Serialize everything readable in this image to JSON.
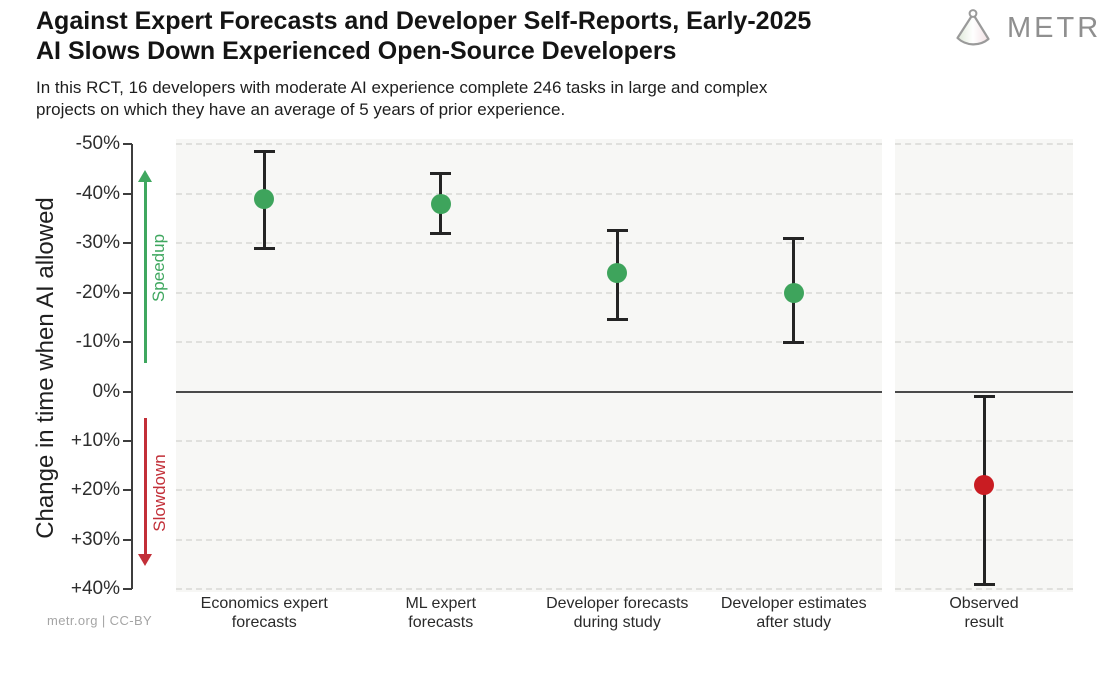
{
  "header": {
    "title_lines": [
      "Against Expert Forecasts and Developer Self-Reports, Early-2025",
      "AI Slows Down Experienced Open-Source Developers"
    ],
    "subtitle_lines": [
      "In this RCT, 16 developers with moderate AI experience complete 246 tasks in large and complex",
      "projects on which they have an average of 5 years of prior experience."
    ],
    "logo_text": "METR"
  },
  "footer": {
    "credit": "metr.org | CC-BY"
  },
  "colors": {
    "speedup_green": "#3fa75f",
    "green_dot": "#3ea45c",
    "slowdown_red": "#c22f38",
    "red_dot": "#c91c22",
    "panel_bg": "#f7f7f5",
    "error_bar": "#242424"
  },
  "chart_data": {
    "type": "scatter",
    "title": "Against Expert Forecasts and Developer Self-Reports, Early-2025 AI Slows Down Experienced Open-Source Developers",
    "ylabel": "Change in time when AI allowed",
    "units": "percent change in completion time when AI is allowed (negative = speedup, positive = slowdown)",
    "ylim_top_to_bottom": [
      -50,
      40
    ],
    "grid": "horizontal dashed, solid line at 0%",
    "legend_position": "none",
    "yticks": [
      {
        "label": "-50%",
        "value": -50
      },
      {
        "label": "-40%",
        "value": -40
      },
      {
        "label": "-30%",
        "value": -30
      },
      {
        "label": "-20%",
        "value": -20
      },
      {
        "label": "-10%",
        "value": -10
      },
      {
        "label": "0%",
        "value": 0
      },
      {
        "label": "+10%",
        "value": 10
      },
      {
        "label": "+20%",
        "value": 20
      },
      {
        "label": "+30%",
        "value": 30
      },
      {
        "label": "+40%",
        "value": 40
      }
    ],
    "annotations": {
      "speedup": {
        "label": "Speedup",
        "color": "#3fa75f",
        "direction": "up",
        "arrow_from_pct": -6,
        "arrow_to_pct": -44
      },
      "slowdown": {
        "label": "Slowdown",
        "color": "#c22f38",
        "direction": "down",
        "arrow_from_pct": 5,
        "arrow_to_pct": 35
      }
    },
    "points": [
      {
        "category_lines": [
          "Economics expert",
          "forecasts"
        ],
        "value": -39,
        "ci": [
          -48.5,
          -29
        ],
        "color": "#3ea45c",
        "panel": 0
      },
      {
        "category_lines": [
          "ML expert",
          "forecasts"
        ],
        "value": -38,
        "ci": [
          -44,
          -32
        ],
        "color": "#3ea45c",
        "panel": 0
      },
      {
        "category_lines": [
          "Developer forecasts",
          "during study"
        ],
        "value": -24,
        "ci": [
          -32.5,
          -14.5
        ],
        "color": "#3ea45c",
        "panel": 0
      },
      {
        "category_lines": [
          "Developer estimates",
          "after study"
        ],
        "value": -20,
        "ci": [
          -31,
          -10
        ],
        "color": "#3ea45c",
        "panel": 0
      },
      {
        "category_lines": [
          "Observed",
          "result"
        ],
        "value": 19,
        "ci": [
          1,
          39
        ],
        "color": "#c91c22",
        "panel": 1
      }
    ]
  }
}
